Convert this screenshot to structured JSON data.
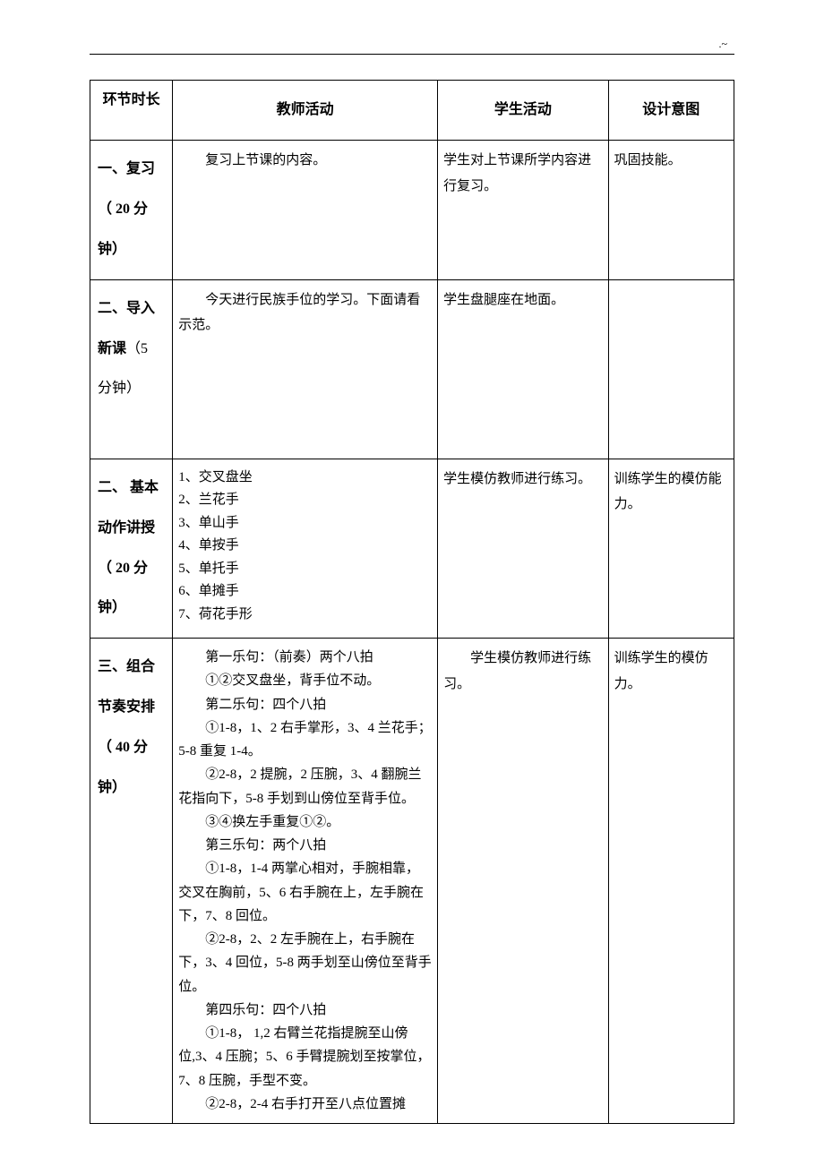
{
  "headerMark": ".~",
  "tableHeaders": {
    "col1": "环节时长",
    "col2": "教师活动",
    "col3": "学生活动",
    "col4": "设计意图"
  },
  "rows": [
    {
      "phase": "一、复习（ 20 分钟）",
      "teacher": "复习上节课的内容。",
      "student": "学生对上节课所学内容进行复习。",
      "intent": "巩固技能。"
    },
    {
      "phasePrefix": "二、导入",
      "phaseBold": "新课",
      "phaseSuffix": "（5 分钟）",
      "teacher": "今天进行民族手位的学习。下面请看示范。",
      "student": "学生盘腿座在地面。",
      "intent": ""
    },
    {
      "phase": "二、 基本动作讲授（ 20 分钟）",
      "teacherLines": [
        "1、交叉盘坐",
        "2、兰花手",
        "3、单山手",
        "4、单按手",
        "5、单托手",
        "6、单摊手",
        "7、荷花手形"
      ],
      "student": "学生模仿教师进行练习。",
      "intent": "训练学生的模仿能力。"
    },
    {
      "phase": "三、组合节奏安排（ 40 分钟）",
      "teacherParts": [
        {
          "indent": true,
          "text": "第一乐句：（前奏）两个八拍"
        },
        {
          "indent": true,
          "text": "①②交叉盘坐，背手位不动。"
        },
        {
          "indent": true,
          "text": "第二乐句：四个八拍"
        },
        {
          "indent": true,
          "text": "①1-8，1、2 右手掌形，3、4 兰花手；5-8 重复 1-4。"
        },
        {
          "indent": true,
          "text": "②2-8，2 提腕，2 压腕，3、4 翻腕兰花指向下，5-8 手划到山傍位至背手位。"
        },
        {
          "indent": true,
          "text": "③④换左手重复①②。"
        },
        {
          "indent": true,
          "text": "第三乐句：两个八拍"
        },
        {
          "indent": true,
          "text": "①1-8，1-4 两掌心相对，手腕相靠，交叉在胸前，5、6 右手腕在上，左手腕在下，7、8 回位。"
        },
        {
          "indent": true,
          "text": "②2-8，2、2 左手腕在上，右手腕在下，3、4 回位，5-8 两手划至山傍位至背手位。"
        },
        {
          "indent": true,
          "text": "第四乐句：四个八拍"
        },
        {
          "indent": true,
          "text": "①1-8， 1,2 右臂兰花指提腕至山傍位,3、4 压腕；5、6 手臂提腕划至按掌位，7、8 压腕，手型不变。"
        },
        {
          "indent": true,
          "text": "②2-8，2-4 右手打开至八点位置摊"
        }
      ],
      "student": "学生模仿教师进行练习。",
      "intent": "训练学生的模仿力。"
    }
  ]
}
